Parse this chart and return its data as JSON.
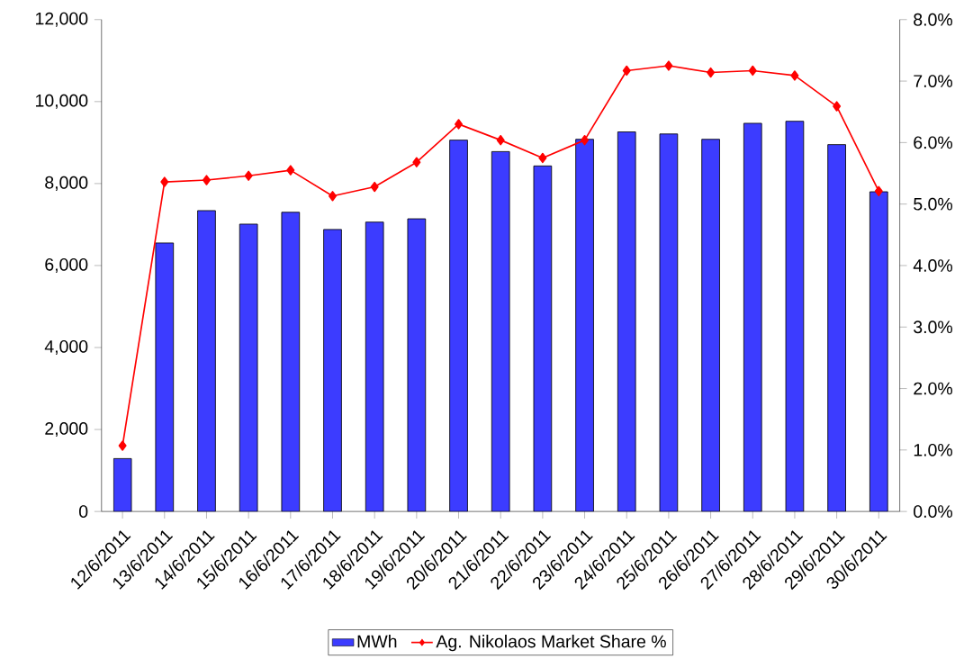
{
  "chart_data": {
    "type": "bar",
    "categories": [
      "12/6/2011",
      "13/6/2011",
      "14/6/2011",
      "15/6/2011",
      "16/6/2011",
      "17/6/2011",
      "18/6/2011",
      "19/6/2011",
      "20/6/2011",
      "21/6/2011",
      "22/6/2011",
      "23/6/2011",
      "24/6/2011",
      "25/6/2011",
      "26/6/2011",
      "27/6/2011",
      "28/6/2011",
      "29/6/2011",
      "30/6/2011"
    ],
    "series": [
      {
        "name": "MWh",
        "color": "#3c3cff",
        "values": [
          1290,
          6550,
          7340,
          7010,
          7300,
          6880,
          7060,
          7140,
          9060,
          8780,
          8430,
          9080,
          9260,
          9210,
          9080,
          9470,
          9520,
          8950,
          7800
        ]
      },
      {
        "name": "Ag. Nikolaos Market Share %",
        "type": "line",
        "axis": "y2",
        "color": "#ff0000",
        "values": [
          1.07,
          5.36,
          5.39,
          5.46,
          5.55,
          5.13,
          5.28,
          5.68,
          6.3,
          6.04,
          5.75,
          6.04,
          7.17,
          7.25,
          7.14,
          7.17,
          7.09,
          6.59,
          5.21
        ]
      }
    ],
    "marker": "diamond",
    "ylim": [
      0,
      12000
    ],
    "yticks": [
      {
        "value": 0,
        "label": "0"
      },
      {
        "value": 2000,
        "label": "2,000"
      },
      {
        "value": 4000,
        "label": "4,000"
      },
      {
        "value": 6000,
        "label": "6,000"
      },
      {
        "value": 8000,
        "label": "8,000"
      },
      {
        "value": 10000,
        "label": "10,000"
      },
      {
        "value": 12000,
        "label": "12,000"
      }
    ],
    "y2lim": [
      0,
      8
    ],
    "y2ticks": [
      {
        "value": 0,
        "label": "0.0%"
      },
      {
        "value": 1,
        "label": "1.0%"
      },
      {
        "value": 2,
        "label": "2.0%"
      },
      {
        "value": 3,
        "label": "3.0%"
      },
      {
        "value": 4,
        "label": "4.0%"
      },
      {
        "value": 5,
        "label": "5.0%"
      },
      {
        "value": 6,
        "label": "6.0%"
      },
      {
        "value": 7,
        "label": "7.0%"
      },
      {
        "value": 8,
        "label": "8.0%"
      }
    ],
    "legend": "bottom"
  }
}
